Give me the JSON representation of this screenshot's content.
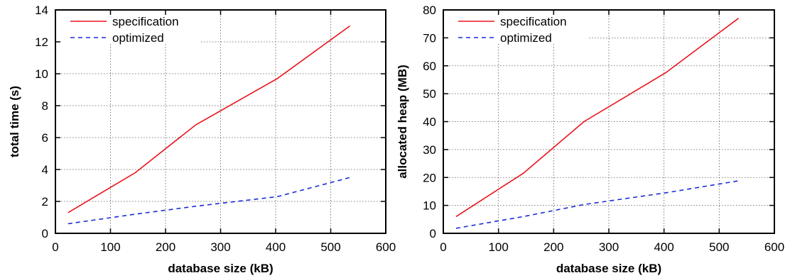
{
  "chart_data": [
    {
      "type": "line",
      "xlabel": "database size (kB)",
      "ylabel": "total time (s)",
      "xlim": [
        0,
        600
      ],
      "ylim": [
        0,
        14
      ],
      "xticks": [
        "0",
        "100",
        "200",
        "300",
        "400",
        "500",
        "600"
      ],
      "yticks": [
        "0",
        "2",
        "4",
        "6",
        "8",
        "10",
        "12",
        "14"
      ],
      "grid": true,
      "legend": "top-left",
      "series": [
        {
          "name": "specification",
          "color": "#e8141c",
          "dash": "solid",
          "x": [
            23,
            145,
            255,
            403,
            535
          ],
          "y": [
            1.3,
            3.8,
            6.8,
            9.7,
            13.0
          ]
        },
        {
          "name": "optimized",
          "color": "#1a2ad6",
          "dash": "dashed",
          "x": [
            23,
            145,
            255,
            403,
            535
          ],
          "y": [
            0.6,
            1.2,
            1.7,
            2.3,
            3.5
          ]
        }
      ]
    },
    {
      "type": "line",
      "xlabel": "database size (kB)",
      "ylabel": "allocated heap (MB)",
      "xlim": [
        0,
        600
      ],
      "ylim": [
        0,
        80
      ],
      "xticks": [
        "0",
        "100",
        "200",
        "300",
        "400",
        "500",
        "600"
      ],
      "yticks": [
        "0",
        "10",
        "20",
        "30",
        "40",
        "50",
        "60",
        "70",
        "80"
      ],
      "grid": true,
      "legend": "top-left",
      "series": [
        {
          "name": "specification",
          "color": "#e8141c",
          "dash": "solid",
          "x": [
            23,
            145,
            255,
            403,
            535
          ],
          "y": [
            6,
            21.5,
            40,
            57.5,
            77
          ]
        },
        {
          "name": "optimized",
          "color": "#1a2ad6",
          "dash": "dashed",
          "x": [
            23,
            145,
            255,
            403,
            535
          ],
          "y": [
            1.8,
            6,
            10.3,
            14.5,
            18.8
          ]
        }
      ]
    }
  ]
}
